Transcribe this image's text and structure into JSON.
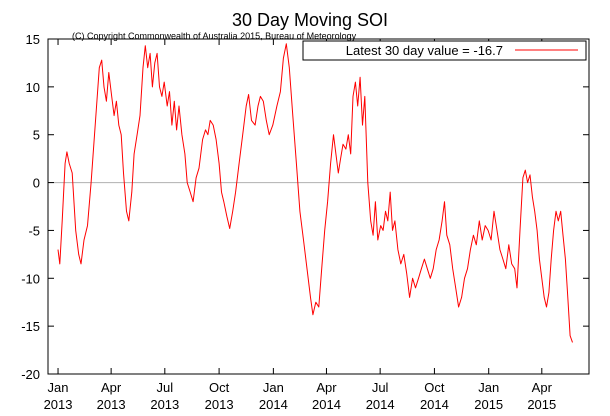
{
  "chart_data": {
    "type": "line",
    "title": "30 Day Moving SOI",
    "subtitle": "(C) Copyright Commonwealth of Australia 2015, Bureau of Meteorology",
    "xlabel": "",
    "ylabel": "",
    "ylim": [
      -20,
      15
    ],
    "yticks": [
      -20,
      -15,
      -10,
      -5,
      0,
      5,
      10,
      15
    ],
    "xlim": [
      "2012-12-15",
      "2015-06-20"
    ],
    "xticks": [
      {
        "date": "2013-01-01",
        "month": "Jan",
        "year": "2013"
      },
      {
        "date": "2013-04-01",
        "month": "Apr",
        "year": "2013"
      },
      {
        "date": "2013-07-01",
        "month": "Jul",
        "year": "2013"
      },
      {
        "date": "2013-10-01",
        "month": "Oct",
        "year": "2013"
      },
      {
        "date": "2014-01-01",
        "month": "Jan",
        "year": "2014"
      },
      {
        "date": "2014-04-01",
        "month": "Apr",
        "year": "2014"
      },
      {
        "date": "2014-07-01",
        "month": "Jul",
        "year": "2014"
      },
      {
        "date": "2014-10-01",
        "month": "Oct",
        "year": "2014"
      },
      {
        "date": "2015-01-01",
        "month": "Jan",
        "year": "2015"
      },
      {
        "date": "2015-04-01",
        "month": "Apr",
        "year": "2015"
      }
    ],
    "reference_line": 0,
    "grid": false,
    "legend_position": "top-right",
    "series": [
      {
        "name": "Latest 30 day value = -16.7",
        "color": "#ff0000",
        "points": [
          [
            "2013-01-01",
            -7.0
          ],
          [
            "2013-01-04",
            -8.5
          ],
          [
            "2013-01-08",
            -4.0
          ],
          [
            "2013-01-13",
            2.0
          ],
          [
            "2013-01-16",
            3.2
          ],
          [
            "2013-01-20",
            2.0
          ],
          [
            "2013-01-25",
            1.0
          ],
          [
            "2013-01-31",
            -5.0
          ],
          [
            "2013-02-05",
            -7.5
          ],
          [
            "2013-02-09",
            -8.5
          ],
          [
            "2013-02-14",
            -6.0
          ],
          [
            "2013-02-20",
            -4.5
          ],
          [
            "2013-02-26",
            0.0
          ],
          [
            "2013-03-05",
            6.0
          ],
          [
            "2013-03-12",
            12.0
          ],
          [
            "2013-03-16",
            12.8
          ],
          [
            "2013-03-20",
            10.0
          ],
          [
            "2013-03-24",
            8.5
          ],
          [
            "2013-03-28",
            11.5
          ],
          [
            "2013-04-02",
            9.0
          ],
          [
            "2013-04-06",
            7.0
          ],
          [
            "2013-04-10",
            8.5
          ],
          [
            "2013-04-14",
            6.0
          ],
          [
            "2013-04-18",
            5.0
          ],
          [
            "2013-04-22",
            1.0
          ],
          [
            "2013-04-27",
            -3.0
          ],
          [
            "2013-05-01",
            -4.0
          ],
          [
            "2013-05-06",
            -1.0
          ],
          [
            "2013-05-10",
            3.0
          ],
          [
            "2013-05-15",
            5.0
          ],
          [
            "2013-05-20",
            7.0
          ],
          [
            "2013-05-25",
            12.0
          ],
          [
            "2013-05-29",
            14.3
          ],
          [
            "2013-06-02",
            12.0
          ],
          [
            "2013-06-06",
            13.5
          ],
          [
            "2013-06-10",
            10.0
          ],
          [
            "2013-06-14",
            12.5
          ],
          [
            "2013-06-18",
            13.5
          ],
          [
            "2013-06-22",
            10.0
          ],
          [
            "2013-06-26",
            9.0
          ],
          [
            "2013-06-30",
            10.5
          ],
          [
            "2013-07-05",
            8.0
          ],
          [
            "2013-07-09",
            9.5
          ],
          [
            "2013-07-13",
            6.0
          ],
          [
            "2013-07-17",
            8.5
          ],
          [
            "2013-07-21",
            5.5
          ],
          [
            "2013-07-25",
            8.0
          ],
          [
            "2013-07-30",
            5.0
          ],
          [
            "2013-08-04",
            3.0
          ],
          [
            "2013-08-08",
            0.0
          ],
          [
            "2013-08-13",
            -1.0
          ],
          [
            "2013-08-18",
            -2.0
          ],
          [
            "2013-08-23",
            0.5
          ],
          [
            "2013-08-28",
            1.5
          ],
          [
            "2013-09-03",
            4.5
          ],
          [
            "2013-09-08",
            5.5
          ],
          [
            "2013-09-12",
            5.0
          ],
          [
            "2013-09-16",
            6.5
          ],
          [
            "2013-09-21",
            6.0
          ],
          [
            "2013-09-26",
            4.5
          ],
          [
            "2013-10-01",
            2.0
          ],
          [
            "2013-10-05",
            -1.0
          ],
          [
            "2013-10-09",
            -2.0
          ],
          [
            "2013-10-14",
            -3.5
          ],
          [
            "2013-10-19",
            -4.8
          ],
          [
            "2013-10-24",
            -3.0
          ],
          [
            "2013-10-29",
            -1.0
          ],
          [
            "2013-11-04",
            2.0
          ],
          [
            "2013-11-10",
            5.0
          ],
          [
            "2013-11-16",
            8.0
          ],
          [
            "2013-11-20",
            9.2
          ],
          [
            "2013-11-25",
            6.5
          ],
          [
            "2013-12-01",
            6.0
          ],
          [
            "2013-12-06",
            8.0
          ],
          [
            "2013-12-10",
            9.0
          ],
          [
            "2013-12-15",
            8.5
          ],
          [
            "2013-12-20",
            6.5
          ],
          [
            "2013-12-25",
            5.0
          ],
          [
            "2013-12-31",
            6.0
          ],
          [
            "2014-01-07",
            8.0
          ],
          [
            "2014-01-13",
            9.5
          ],
          [
            "2014-01-18",
            13.0
          ],
          [
            "2014-01-23",
            14.5
          ],
          [
            "2014-01-28",
            12.0
          ],
          [
            "2014-02-03",
            7.0
          ],
          [
            "2014-02-09",
            2.0
          ],
          [
            "2014-02-15",
            -3.0
          ],
          [
            "2014-02-21",
            -6.0
          ],
          [
            "2014-02-27",
            -9.0
          ],
          [
            "2014-03-05",
            -12.0
          ],
          [
            "2014-03-09",
            -13.8
          ],
          [
            "2014-03-14",
            -12.5
          ],
          [
            "2014-03-19",
            -13.0
          ],
          [
            "2014-03-24",
            -9.0
          ],
          [
            "2014-03-29",
            -5.0
          ],
          [
            "2014-04-03",
            -2.0
          ],
          [
            "2014-04-08",
            2.0
          ],
          [
            "2014-04-13",
            5.0
          ],
          [
            "2014-04-17",
            3.0
          ],
          [
            "2014-04-21",
            1.0
          ],
          [
            "2014-04-25",
            2.5
          ],
          [
            "2014-04-29",
            4.0
          ],
          [
            "2014-05-04",
            3.5
          ],
          [
            "2014-05-08",
            5.0
          ],
          [
            "2014-05-12",
            3.0
          ],
          [
            "2014-05-16",
            9.0
          ],
          [
            "2014-05-20",
            10.5
          ],
          [
            "2014-05-24",
            8.0
          ],
          [
            "2014-05-28",
            11.0
          ],
          [
            "2014-06-01",
            6.0
          ],
          [
            "2014-06-05",
            9.0
          ],
          [
            "2014-06-10",
            0.0
          ],
          [
            "2014-06-15",
            -4.0
          ],
          [
            "2014-06-19",
            -5.5
          ],
          [
            "2014-06-23",
            -2.0
          ],
          [
            "2014-06-27",
            -6.0
          ],
          [
            "2014-07-02",
            -4.5
          ],
          [
            "2014-07-06",
            -5.0
          ],
          [
            "2014-07-10",
            -3.0
          ],
          [
            "2014-07-14",
            -4.0
          ],
          [
            "2014-07-18",
            -1.0
          ],
          [
            "2014-07-22",
            -5.0
          ],
          [
            "2014-07-26",
            -4.0
          ],
          [
            "2014-07-31",
            -7.0
          ],
          [
            "2014-08-05",
            -8.5
          ],
          [
            "2014-08-10",
            -7.5
          ],
          [
            "2014-08-15",
            -9.5
          ],
          [
            "2014-08-20",
            -12.0
          ],
          [
            "2014-08-25",
            -10.0
          ],
          [
            "2014-08-30",
            -11.0
          ],
          [
            "2014-09-04",
            -10.0
          ],
          [
            "2014-09-09",
            -9.0
          ],
          [
            "2014-09-14",
            -8.0
          ],
          [
            "2014-09-19",
            -9.0
          ],
          [
            "2014-09-24",
            -10.0
          ],
          [
            "2014-09-29",
            -9.0
          ],
          [
            "2014-10-04",
            -7.0
          ],
          [
            "2014-10-09",
            -6.0
          ],
          [
            "2014-10-14",
            -4.0
          ],
          [
            "2014-10-18",
            -2.0
          ],
          [
            "2014-10-22",
            -5.5
          ],
          [
            "2014-10-27",
            -6.5
          ],
          [
            "2014-11-01",
            -9.0
          ],
          [
            "2014-11-06",
            -11.0
          ],
          [
            "2014-11-11",
            -13.0
          ],
          [
            "2014-11-16",
            -12.0
          ],
          [
            "2014-11-21",
            -10.0
          ],
          [
            "2014-11-26",
            -9.0
          ],
          [
            "2014-12-01",
            -7.0
          ],
          [
            "2014-12-06",
            -5.5
          ],
          [
            "2014-12-11",
            -6.5
          ],
          [
            "2014-12-16",
            -4.0
          ],
          [
            "2014-12-21",
            -6.0
          ],
          [
            "2014-12-26",
            -4.5
          ],
          [
            "2014-12-31",
            -5.0
          ],
          [
            "2015-01-05",
            -6.0
          ],
          [
            "2015-01-10",
            -3.0
          ],
          [
            "2015-01-15",
            -5.0
          ],
          [
            "2015-01-20",
            -7.0
          ],
          [
            "2015-01-25",
            -8.0
          ],
          [
            "2015-01-30",
            -9.0
          ],
          [
            "2015-02-04",
            -6.5
          ],
          [
            "2015-02-09",
            -8.5
          ],
          [
            "2015-02-14",
            -9.0
          ],
          [
            "2015-02-18",
            -11.0
          ],
          [
            "2015-02-23",
            -5.0
          ],
          [
            "2015-02-28",
            0.5
          ],
          [
            "2015-03-04",
            1.3
          ],
          [
            "2015-03-08",
            0.0
          ],
          [
            "2015-03-12",
            0.8
          ],
          [
            "2015-03-16",
            -1.5
          ],
          [
            "2015-03-20",
            -3.0
          ],
          [
            "2015-03-24",
            -5.0
          ],
          [
            "2015-03-28",
            -8.0
          ],
          [
            "2015-04-01",
            -10.0
          ],
          [
            "2015-04-05",
            -12.0
          ],
          [
            "2015-04-09",
            -13.0
          ],
          [
            "2015-04-13",
            -11.5
          ],
          [
            "2015-04-17",
            -8.0
          ],
          [
            "2015-04-21",
            -5.0
          ],
          [
            "2015-04-25",
            -3.0
          ],
          [
            "2015-04-29",
            -4.0
          ],
          [
            "2015-05-03",
            -3.0
          ],
          [
            "2015-05-07",
            -5.5
          ],
          [
            "2015-05-11",
            -8.0
          ],
          [
            "2015-05-15",
            -12.0
          ],
          [
            "2015-05-19",
            -16.0
          ],
          [
            "2015-05-23",
            -16.7
          ]
        ]
      }
    ]
  }
}
